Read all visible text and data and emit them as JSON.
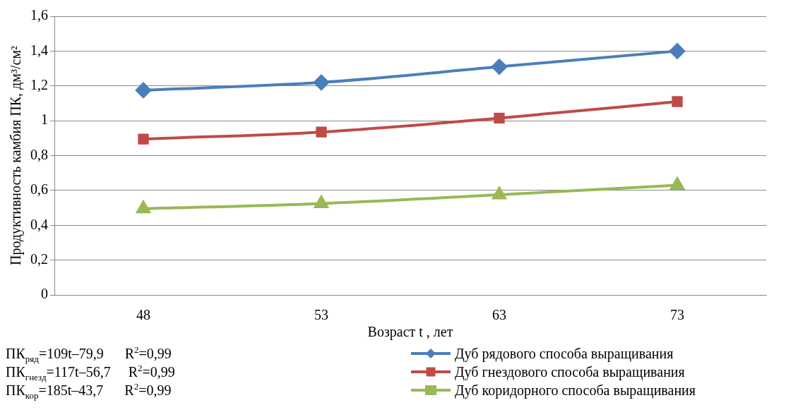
{
  "chart_data": {
    "type": "line",
    "xlabel": "Возраст t , лет",
    "ylabel": "Продуктивность камбия ПК, дм³/см²",
    "categories": [
      "48",
      "53",
      "63",
      "73"
    ],
    "series": [
      {
        "name": "Дуб рядового способа выращивания",
        "color": "#4a7ebb",
        "marker": "diamond",
        "values": [
          1.175,
          1.22,
          1.31,
          1.4
        ]
      },
      {
        "name": "Дуб гнездового способа выращивания",
        "color": "#be4b48",
        "marker": "square",
        "values": [
          0.895,
          0.935,
          1.015,
          1.11
        ]
      },
      {
        "name": "Дуб коридорного способа выращивания",
        "color": "#98b954",
        "marker": "triangle",
        "values": [
          0.495,
          0.525,
          0.575,
          0.63
        ]
      }
    ],
    "ylim": [
      0,
      1.6
    ],
    "yticks": [
      {
        "value": 0,
        "label": "0"
      },
      {
        "value": 0.2,
        "label": "0,2"
      },
      {
        "value": 0.4,
        "label": "0,4"
      },
      {
        "value": 0.6,
        "label": "0,6"
      },
      {
        "value": 0.8,
        "label": "0,8"
      },
      {
        "value": 1,
        "label": "1"
      },
      {
        "value": 1.2,
        "label": "1,2"
      },
      {
        "value": 1.4,
        "label": "1,4"
      },
      {
        "value": 1.6,
        "label": "1,6"
      }
    ],
    "grid": "y",
    "legend": "bottom right",
    "line_style": "solid",
    "annotations": [
      "ПК$_{ряд}$=109t–79,9      R$^{2}$=0,99",
      "ПК$_{гнезд}$=117t–56,7     R$^{2}$=0,99",
      "ПК$_{кор}$=185t–43,7      R$^{2}$=0,99"
    ]
  }
}
